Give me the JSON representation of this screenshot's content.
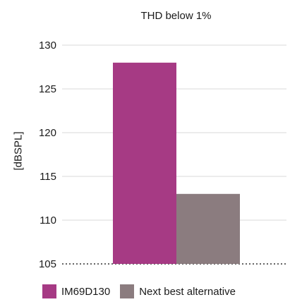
{
  "chart_data": {
    "type": "bar",
    "title": "THD below 1%",
    "ylabel": "[dBSPL]",
    "xlabel": "",
    "ylim": [
      105,
      130
    ],
    "yticks": [
      105,
      110,
      115,
      120,
      125,
      130
    ],
    "grid": true,
    "legend_position": "bottom",
    "series": [
      {
        "name": "IM69D130",
        "value": 128,
        "color": "#a63a84"
      },
      {
        "name": "Next best alternative",
        "value": 113,
        "color": "#8b7c7f"
      }
    ]
  }
}
